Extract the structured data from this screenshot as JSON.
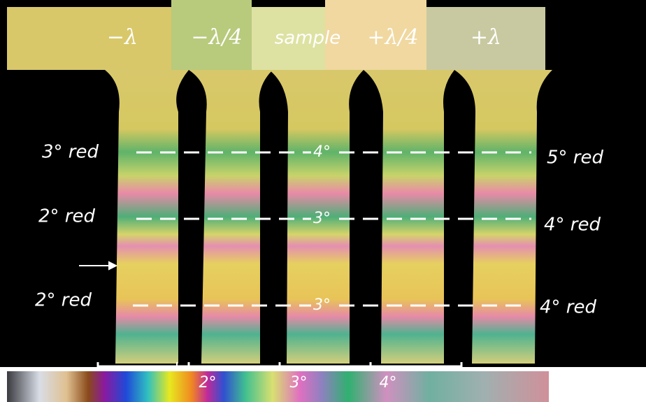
{
  "header": {
    "labels": [
      "−λ",
      "−λ/4",
      "sample",
      "+λ/4",
      "+λ"
    ]
  },
  "left_labels": [
    "3° red",
    "2° red",
    "2° red"
  ],
  "center_labels": [
    "4°",
    "3°",
    "3°"
  ],
  "right_labels": [
    "5° red",
    "4° red",
    "4° red"
  ],
  "scale_labels": [
    "2°",
    "3°",
    "4°"
  ]
}
